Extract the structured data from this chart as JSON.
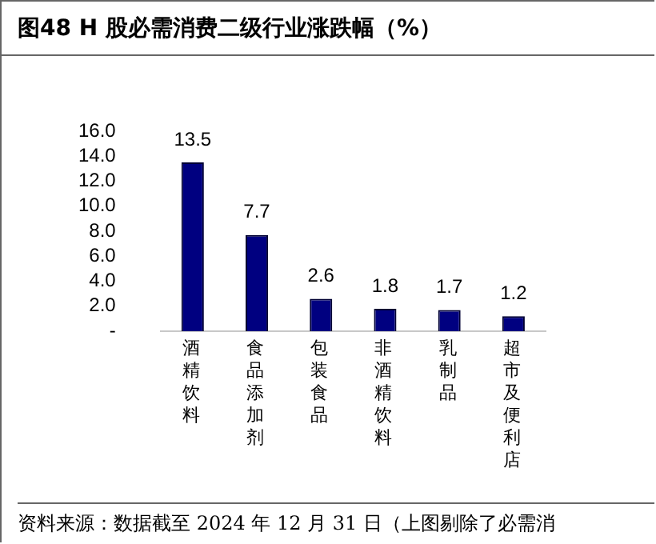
{
  "chart_data": {
    "type": "bar",
    "title": "图48 H 股必需消费二级行业涨跌幅（%）",
    "categories": [
      "酒精饮料",
      "食品添加剂",
      "包装食品",
      "非酒精饮料",
      "乳制品",
      "超市及便利店"
    ],
    "values": [
      13.5,
      7.7,
      2.6,
      1.8,
      1.7,
      1.2
    ],
    "color": "#000080",
    "ylim": [
      0,
      16
    ],
    "yticks": [
      {
        "value": 0,
        "label": "-"
      },
      {
        "value": 2,
        "label": "2.0"
      },
      {
        "value": 4,
        "label": "4.0"
      },
      {
        "value": 6,
        "label": "6.0"
      },
      {
        "value": 8,
        "label": "8.0"
      },
      {
        "value": 10,
        "label": "10.0"
      },
      {
        "value": 12,
        "label": "12.0"
      },
      {
        "value": 14,
        "label": "14.0"
      },
      {
        "value": 16,
        "label": "16.0"
      }
    ],
    "grid": false,
    "legend": false,
    "data_labels": true,
    "annotations": [
      "资料来源：数据截至 2024 年 12 月 31 日（上图剔除了必需消"
    ]
  }
}
